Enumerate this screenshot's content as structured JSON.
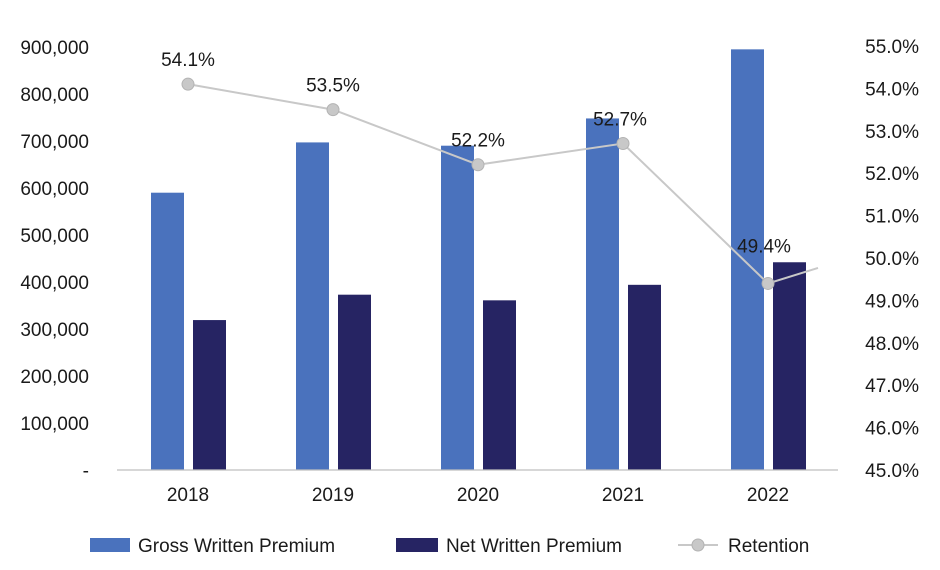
{
  "chart_data": {
    "type": "bar",
    "categories": [
      "2018",
      "2019",
      "2020",
      "2021",
      "2022"
    ],
    "series": [
      {
        "name": "Gross Written Premium",
        "kind": "bar",
        "axis": "left",
        "color": "#4a72bd",
        "values": [
          590000,
          697000,
          690000,
          748000,
          895000
        ]
      },
      {
        "name": "Net Written Premium",
        "kind": "bar",
        "axis": "left",
        "color": "#262463",
        "values": [
          319000,
          373000,
          361000,
          394000,
          442000
        ]
      },
      {
        "name": "Retention",
        "kind": "line",
        "axis": "right",
        "color": "#c8c8c8",
        "values": [
          54.1,
          53.5,
          52.2,
          52.7,
          49.4
        ],
        "labels": [
          "54.1%",
          "53.5%",
          "52.2%",
          "52.7%",
          "49.4%"
        ]
      }
    ],
    "y_left": {
      "ylim": [
        0,
        900000
      ],
      "ticks": [
        0,
        100000,
        200000,
        300000,
        400000,
        500000,
        600000,
        700000,
        800000,
        900000
      ],
      "tick_labels": [
        "-",
        "100,000",
        "200,000",
        "300,000",
        "400,000",
        "500,000",
        "600,000",
        "700,000",
        "800,000",
        "900,000"
      ]
    },
    "y_right": {
      "ylim": [
        45.0,
        55.0
      ],
      "ticks": [
        45,
        46,
        47,
        48,
        49,
        50,
        51,
        52,
        53,
        54,
        55
      ],
      "tick_labels": [
        "45.0%",
        "46.0%",
        "47.0%",
        "48.0%",
        "49.0%",
        "50.0%",
        "51.0%",
        "52.0%",
        "53.0%",
        "54.0%",
        "55.0%"
      ]
    },
    "title": "",
    "xlabel": "",
    "ylabel": "",
    "grid": false,
    "legend": "bottom"
  }
}
